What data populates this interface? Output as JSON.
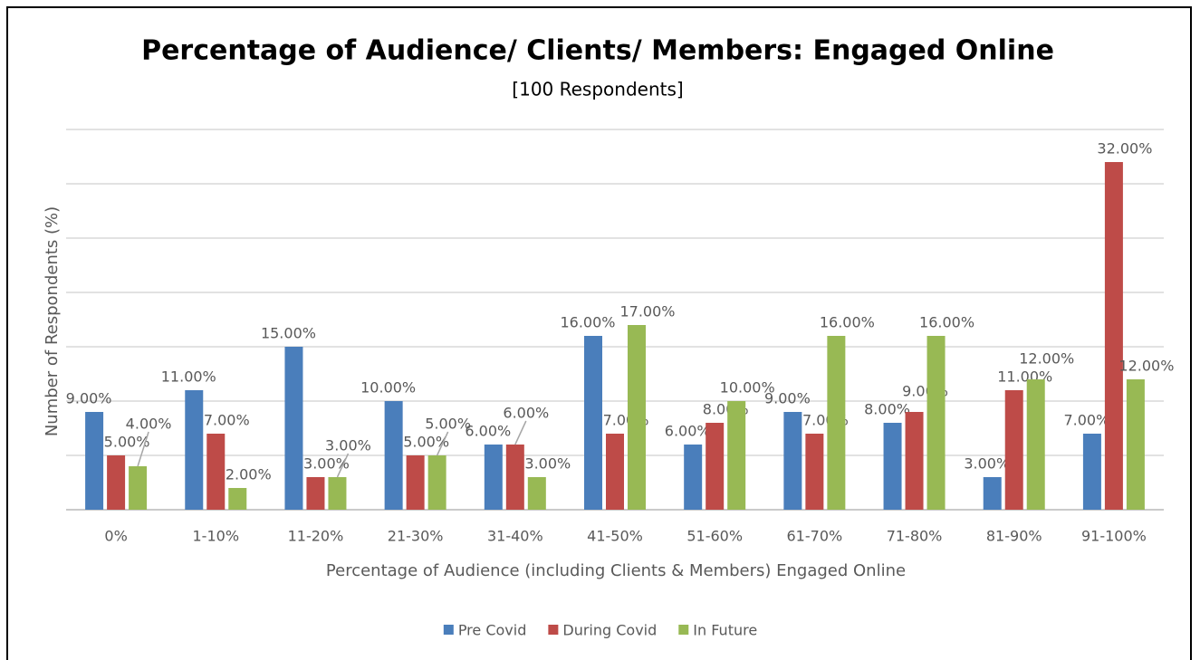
{
  "chart_data": {
    "type": "bar",
    "title": "Percentage of Audience/ Clients/ Members: Engaged Online",
    "subtitle": "[100 Respondents]",
    "x_label": "Percentage of Audience (including Clients & Members) Engaged Online",
    "y_label": "Number of Respondents (%)",
    "categories": [
      "0%",
      "1-10%",
      "11-20%",
      "21-30%",
      "31-40%",
      "41-50%",
      "51-60%",
      "61-70%",
      "71-80%",
      "81-90%",
      "91-100%"
    ],
    "series": [
      {
        "name": "Pre Covid",
        "color": "#4a7ebb",
        "values": [
          9,
          11,
          15,
          10,
          6,
          16,
          6,
          9,
          8,
          3,
          7
        ],
        "value_labels": [
          "9.00%",
          "11.00%",
          "15.00%",
          "10.00%",
          "6.00%",
          "16.00%",
          "6.00%",
          "9.00%",
          "8.00%",
          "3.00%",
          "7.00%"
        ]
      },
      {
        "name": "During Covid",
        "color": "#be4b48",
        "values": [
          5,
          7,
          3,
          5,
          6,
          7,
          8,
          7,
          9,
          11,
          32
        ],
        "value_labels": [
          "5.00%",
          "7.00%",
          "3.00%",
          "5.00%",
          "6.00%",
          "7.00%",
          "8.00%",
          "7.00%",
          "9.00%",
          "11.00%",
          "32.00%"
        ]
      },
      {
        "name": "In Future",
        "color": "#98b954",
        "values": [
          4,
          2,
          3,
          5,
          3,
          17,
          10,
          16,
          16,
          12,
          12
        ],
        "value_labels": [
          "4.00%",
          "2.00%",
          "3.00%",
          "5.00%",
          "3.00%",
          "17.00%",
          "10.00%",
          "16.00%",
          "16.00%",
          "12.00%",
          "12.00%"
        ]
      }
    ],
    "ylim": [
      0,
      35
    ],
    "yticks": [
      0,
      5,
      10,
      15,
      20,
      25,
      30,
      35
    ],
    "grid": true,
    "legend": "bottom"
  }
}
